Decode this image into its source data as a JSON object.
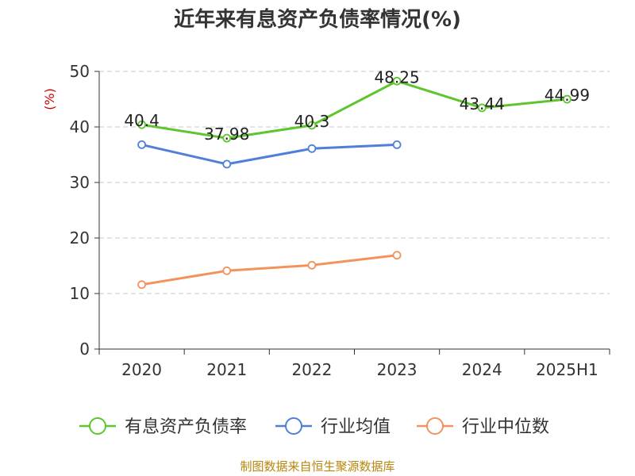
{
  "chart_data": {
    "type": "line",
    "title": "近年来有息资产负债率情况(%)",
    "ylabel": "(%)",
    "xlabel": "",
    "categories": [
      "2020",
      "2021",
      "2022",
      "2023",
      "2024",
      "2025H1"
    ],
    "ylim": [
      0,
      50
    ],
    "yticks": [
      0,
      10,
      20,
      30,
      40,
      50
    ],
    "grid": "horizontal-dashed",
    "legend_position": "bottom",
    "series": [
      {
        "name": "有息资产负债率",
        "color": "#5ec52e",
        "values": [
          40.4,
          37.98,
          40.3,
          48.25,
          43.44,
          44.99
        ],
        "labels": [
          "40.4",
          "37.98",
          "40.3",
          "48.25",
          "43.44",
          "44.99"
        ]
      },
      {
        "name": "行业均值",
        "color": "#4f7fd9",
        "values": [
          36.8,
          33.3,
          36.1,
          36.8,
          null,
          null
        ]
      },
      {
        "name": "行业中位数",
        "color": "#f4925e",
        "values": [
          11.6,
          14.1,
          15.1,
          16.9,
          null,
          null
        ]
      }
    ]
  },
  "source": "制图数据来自恒生聚源数据库"
}
